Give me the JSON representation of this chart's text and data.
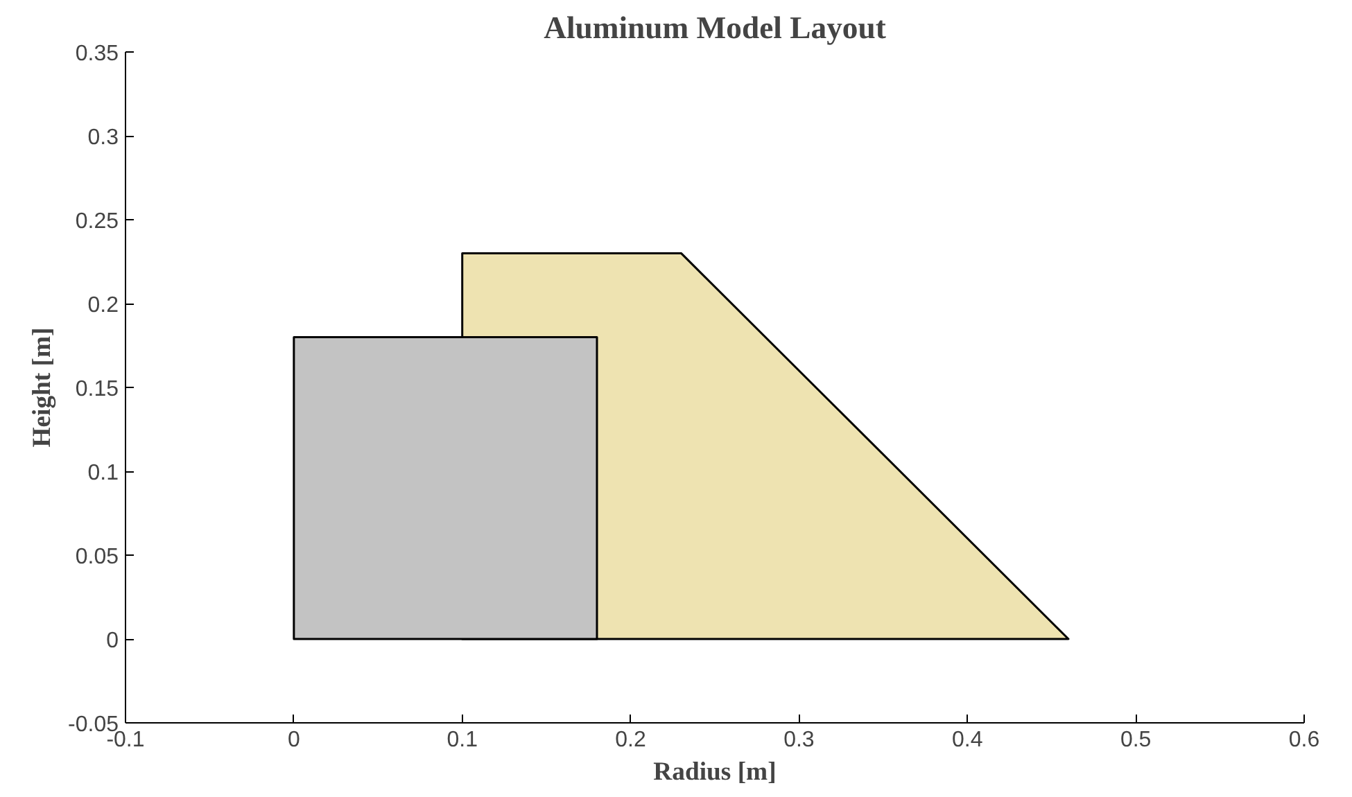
{
  "chart_data": {
    "type": "area",
    "title": "Aluminum Model Layout",
    "xlabel": "Radius [m]",
    "ylabel": "Height [m]",
    "series": [
      {
        "color": "#eee3b1",
        "x": [
          0.1,
          0.1,
          0.23,
          0.46,
          0.1
        ],
        "values": [
          0,
          0.23,
          0.23,
          0,
          0
        ]
      },
      {
        "color": "#c3c3c3",
        "x": [
          0,
          0,
          0.18,
          0.18,
          0
        ],
        "values": [
          0,
          0.18,
          0.18,
          0,
          0
        ]
      }
    ],
    "xlim": [
      -0.1,
      0.6
    ],
    "ylim": [
      -0.05,
      0.35
    ],
    "xticks": [
      -0.1,
      0,
      0.1,
      0.2,
      0.3,
      0.4,
      0.5,
      0.6
    ],
    "yticks": [
      -0.05,
      0,
      0.05,
      0.1,
      0.15,
      0.2,
      0.25,
      0.3,
      0.35
    ],
    "grid": false
  }
}
